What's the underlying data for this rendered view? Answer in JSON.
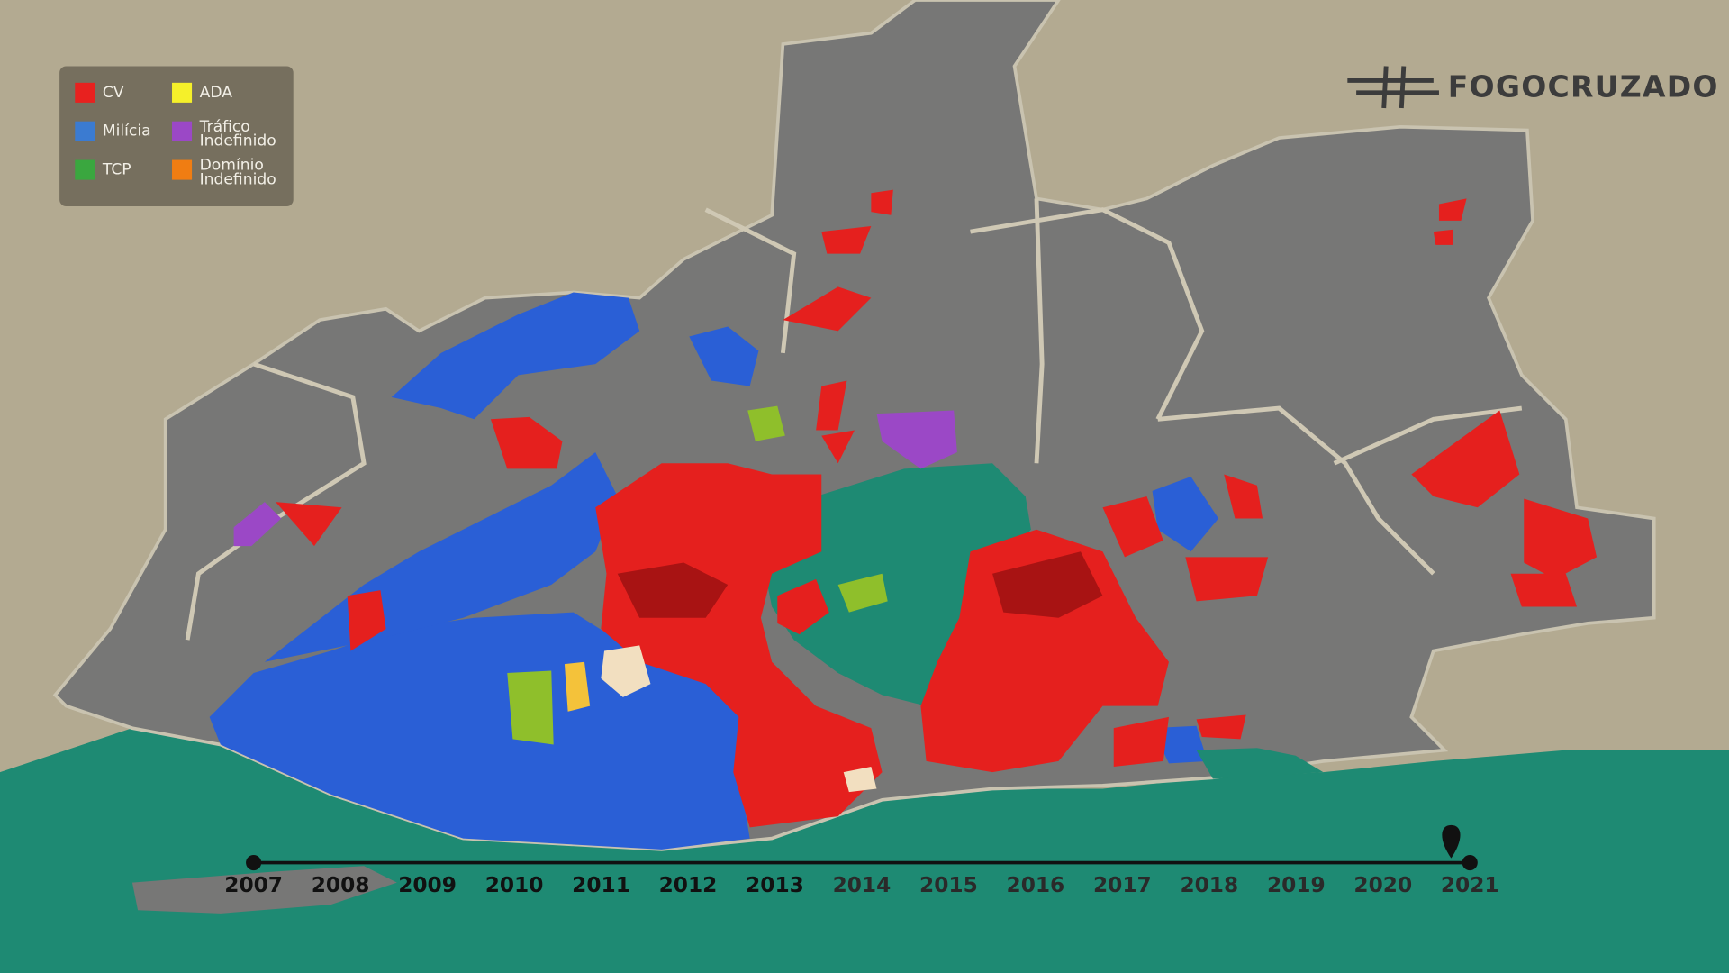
{
  "legend": {
    "items": [
      {
        "lines": [
          "CV"
        ],
        "color": "#e8211f"
      },
      {
        "lines": [
          "ADA"
        ],
        "color": "#f5f02a"
      },
      {
        "lines": [
          "Milícia"
        ],
        "color": "#3b7bd1"
      },
      {
        "lines": [
          "Tráfico",
          "Indefinido"
        ],
        "color": "#9b48c6"
      },
      {
        "lines": [
          "TCP"
        ],
        "color": "#3aa73f"
      },
      {
        "lines": [
          "Domínio",
          "Indefinido"
        ],
        "color": "#f07d12"
      }
    ]
  },
  "logo": {
    "text": "FOGOCRUZADO"
  },
  "timeline": {
    "years": [
      "2007",
      "2008",
      "2009",
      "2010",
      "2011",
      "2012",
      "2013",
      "2014",
      "2015",
      "2016",
      "2017",
      "2018",
      "2019",
      "2020",
      "2021"
    ],
    "current": "2021"
  }
}
